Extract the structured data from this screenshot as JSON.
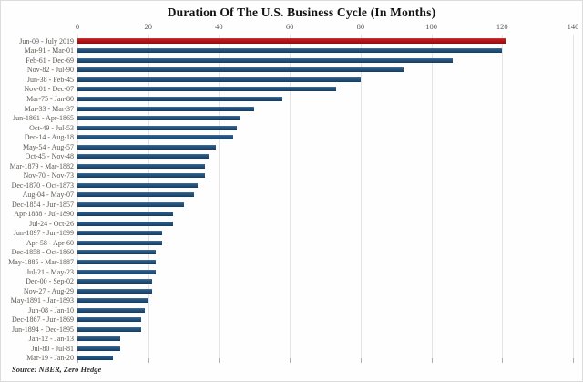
{
  "title": "Duration Of The U.S. Business Cycle (In Months)",
  "source_note": "Source: NBER, Zero Hedge",
  "colors": {
    "bar_blue": "#1F4E79",
    "bar_red": "#B01116",
    "gridline": "#E4E4E4",
    "tick_label": "#595959",
    "row_label": "#5D5852",
    "title": "#111111",
    "frame": "#DCDCDC"
  },
  "chart_data": {
    "type": "bar",
    "orientation": "horizontal",
    "title": "Duration Of The U.S. Business Cycle (In Months)",
    "xlabel": "",
    "ylabel": "",
    "xlim": [
      0,
      140
    ],
    "x_ticks": [
      0,
      20,
      40,
      60,
      80,
      100,
      120,
      140
    ],
    "grid": true,
    "legend": "none",
    "highlight_index": 0,
    "categories": [
      "Jun-09 - July 2019",
      "Mar-91 - Mar-01",
      "Feb-61 - Dec-69",
      "Nov-82 - Jul-90",
      "Jun-38 - Feb-45",
      "Nov-01 - Dec-07",
      "Mar-75 - Jan-80",
      "Mar-33 - Mar-37",
      "Jun-1861 - Apr-1865",
      "Oct-49 - Jul-53",
      "Dec-14 - Aug-18",
      "May-54 - Aug-57",
      "Oct-45 - Nov-48",
      "Mar-1879 - Mar-1882",
      "Nov-70 - Nov-73",
      "Dec-1870 - Oct-1873",
      "Aug-04 - May-07",
      "Dec-1854 - Jun-1857",
      "Apr-1888 - Jul-1890",
      "Jul-24 - Oct-26",
      "Jun-1897 - Jun-1899",
      "Apr-58 - Apr-60",
      "Dec-1858 - Oct-1860",
      "May-1885 - Mar-1887",
      "Jul-21 - May-23",
      "Dec-00 - Sep-02",
      "Nov-27 - Aug-29",
      "May-1891 - Jan-1893",
      "Jun-08 - Jan-10",
      "Dec-1867 - Jun-1869",
      "Jun-1894 - Dec-1895",
      "Jan-12 - Jan-13",
      "Jul-80 - Jul-81",
      "Mar-19 - Jan-20"
    ],
    "values": [
      121,
      120,
      106,
      92,
      80,
      73,
      58,
      50,
      46,
      45,
      44,
      39,
      37,
      36,
      36,
      34,
      33,
      30,
      27,
      27,
      24,
      24,
      22,
      22,
      22,
      21,
      21,
      20,
      19,
      18,
      18,
      12,
      12,
      10
    ]
  }
}
